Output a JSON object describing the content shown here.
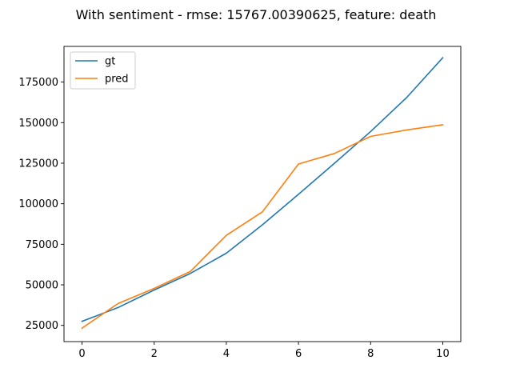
{
  "chart_data": {
    "type": "line",
    "title": "With sentiment - rmse: 15767.00390625, feature: death",
    "xlabel": "",
    "ylabel": "",
    "x": [
      0,
      1,
      2,
      3,
      4,
      5,
      6,
      7,
      8,
      9,
      10
    ],
    "xlim": [
      -0.5,
      10.5
    ],
    "ylim": [
      15000,
      197000
    ],
    "xticks": [
      0,
      2,
      4,
      6,
      8,
      10
    ],
    "yticks": [
      25000,
      50000,
      75000,
      100000,
      125000,
      150000,
      175000
    ],
    "grid": false,
    "legend_position": "upper-left",
    "series": [
      {
        "name": "gt",
        "color": "#1f77b4",
        "values": [
          27500,
          36000,
          46800,
          57000,
          69500,
          87000,
          105800,
          125000,
          144500,
          165500,
          190000
        ]
      },
      {
        "name": "pred",
        "color": "#ff7f0e",
        "values": [
          23300,
          38500,
          47800,
          58200,
          80500,
          95000,
          124500,
          131000,
          141500,
          145500,
          148700
        ]
      }
    ]
  }
}
